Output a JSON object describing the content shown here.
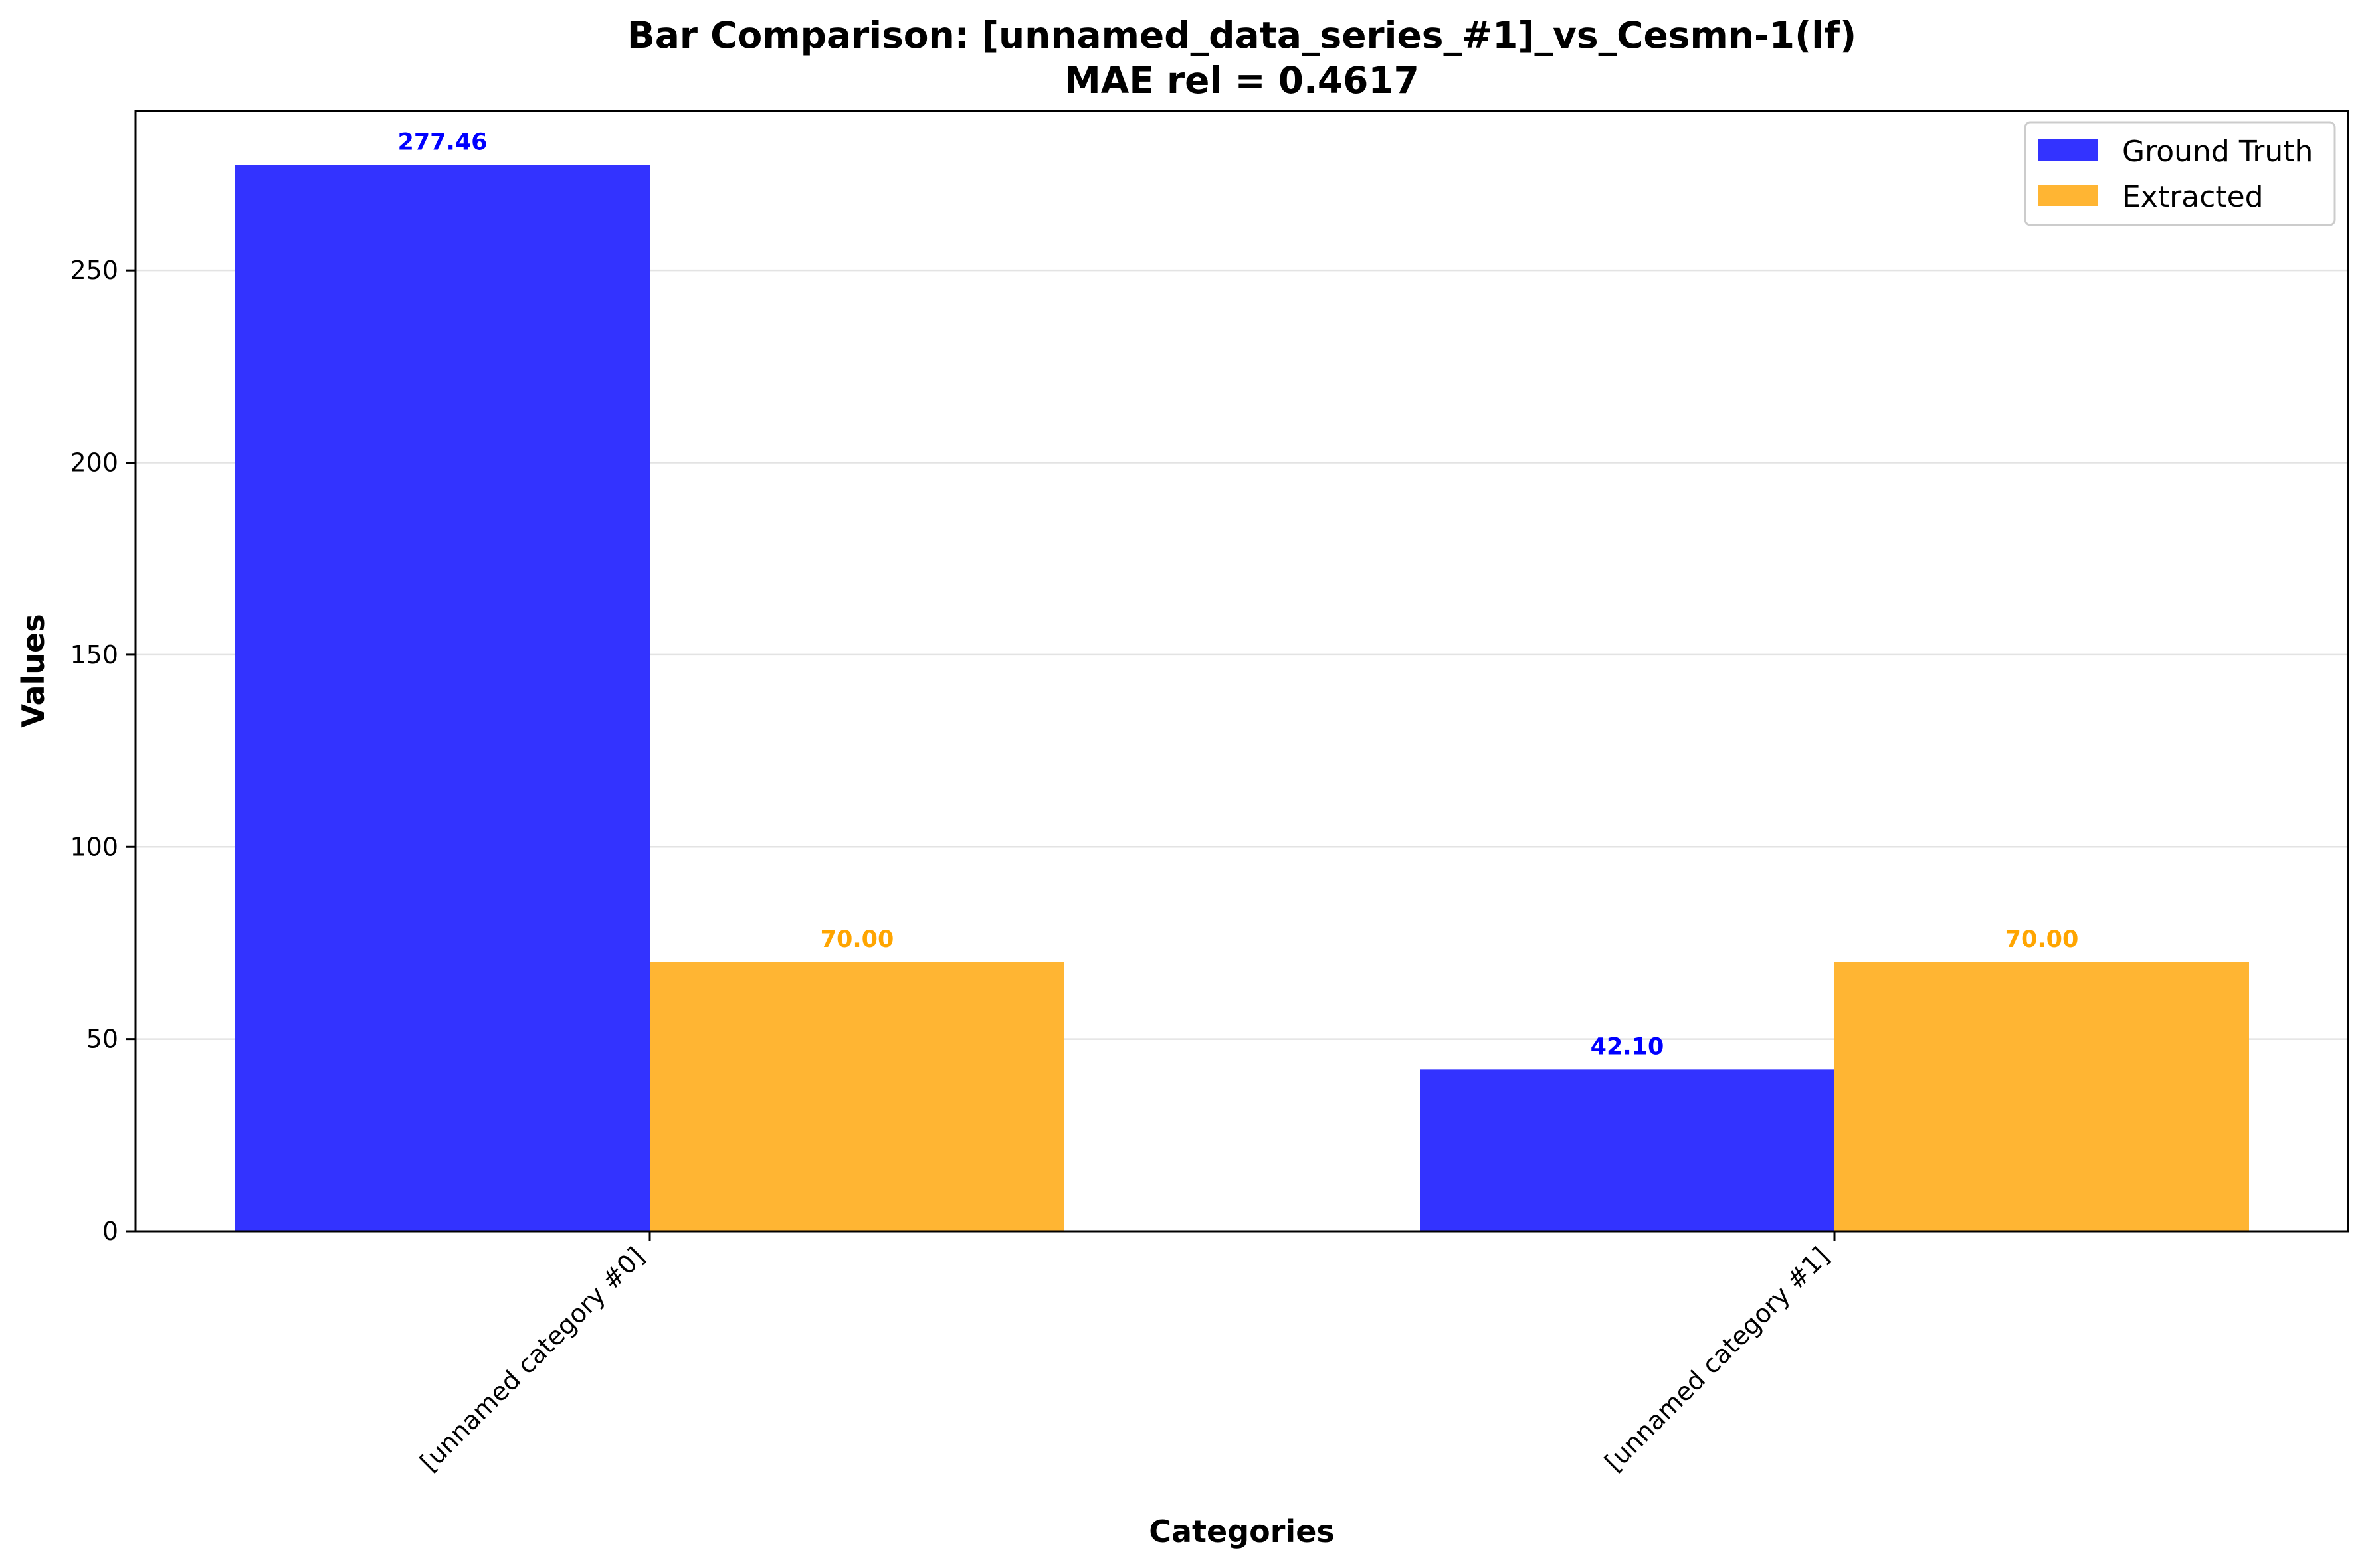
{
  "chart_data": {
    "type": "bar",
    "title": "Bar Comparison: [unnamed_data_series_#1]_vs_Cesmn-1(lf)",
    "subtitle": "MAE rel = 0.4617",
    "xlabel": "Categories",
    "ylabel": "Values",
    "categories": [
      "[unnamed category #0]",
      "[unnamed category #1]"
    ],
    "series": [
      {
        "name": "Ground Truth",
        "values": [
          277.46,
          42.1
        ],
        "labels": [
          "277.46",
          "42.10"
        ],
        "color": "#3333ff",
        "label_color": "#0000ff"
      },
      {
        "name": "Extracted",
        "values": [
          70.0,
          70.0
        ],
        "labels": [
          "70.00",
          "70.00"
        ],
        "color": "#ffb533",
        "label_color": "#ffa500"
      }
    ],
    "ylim": [
      0,
      291.5
    ],
    "yticks": [
      0,
      50,
      100,
      150,
      200,
      250
    ],
    "ytick_labels": [
      "0",
      "50",
      "100",
      "150",
      "200",
      "250"
    ],
    "grid": true,
    "legend_position": "top-right"
  }
}
